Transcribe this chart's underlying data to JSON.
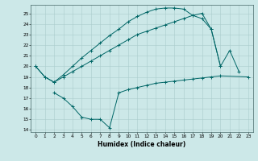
{
  "xlabel": "Humidex (Indice chaleur)",
  "background_color": "#cce8e8",
  "grid_color": "#aacccc",
  "line_color": "#006666",
  "xlim": [
    -0.5,
    23.5
  ],
  "ylim": [
    13.8,
    25.8
  ],
  "yticks": [
    14,
    15,
    16,
    17,
    18,
    19,
    20,
    21,
    22,
    23,
    24,
    25
  ],
  "xticks": [
    0,
    1,
    2,
    3,
    4,
    5,
    6,
    7,
    8,
    9,
    10,
    11,
    12,
    13,
    14,
    15,
    16,
    17,
    18,
    19,
    20,
    21,
    22,
    23
  ],
  "line1_x": [
    0,
    1,
    2,
    3,
    4,
    5,
    6,
    7,
    8,
    9,
    10,
    11,
    12,
    13,
    14,
    15,
    16,
    17,
    18,
    19,
    20,
    21,
    22
  ],
  "line1_y": [
    20.0,
    19.0,
    18.5,
    19.2,
    20.0,
    20.8,
    21.5,
    22.2,
    22.9,
    23.5,
    24.2,
    24.7,
    25.1,
    25.4,
    25.5,
    25.5,
    25.4,
    24.8,
    25.0,
    23.5,
    20.0,
    21.5,
    19.5
  ],
  "line2_x": [
    0,
    1,
    2,
    3,
    4,
    5,
    6,
    7,
    8,
    9,
    10,
    11,
    12,
    13,
    14,
    15,
    16,
    17,
    18,
    19,
    20
  ],
  "line2_y": [
    20.0,
    19.0,
    18.5,
    19.0,
    19.5,
    20.0,
    20.5,
    21.0,
    21.5,
    22.0,
    22.5,
    23.0,
    23.3,
    23.6,
    23.9,
    24.2,
    24.5,
    24.8,
    24.5,
    23.5,
    20.0
  ],
  "line3_x": [
    2,
    3,
    4,
    5,
    6,
    7,
    8,
    9,
    10,
    11,
    12,
    13,
    14,
    15,
    16,
    17,
    18,
    19,
    20,
    23
  ],
  "line3_y": [
    17.5,
    17.0,
    16.2,
    15.2,
    15.0,
    15.0,
    14.2,
    17.5,
    17.8,
    18.0,
    18.2,
    18.4,
    18.5,
    18.6,
    18.7,
    18.8,
    18.9,
    19.0,
    19.1,
    19.0
  ]
}
